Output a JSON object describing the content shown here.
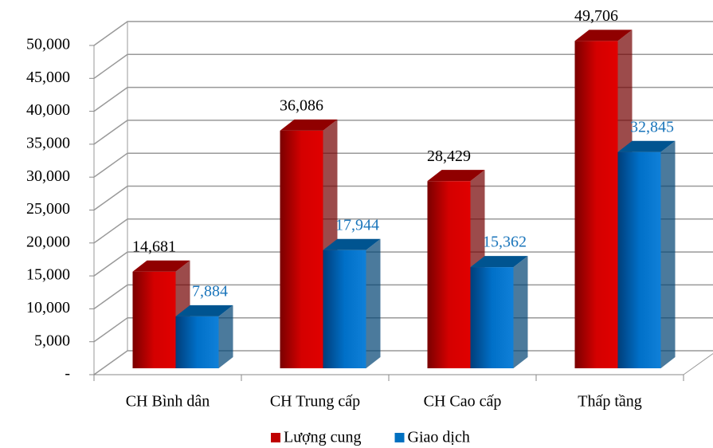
{
  "chart_data": {
    "type": "bar3d",
    "categories": [
      "CH Bình dân",
      "CH Trung cấp",
      "CH Cao cấp",
      "Thấp tầng"
    ],
    "series": [
      {
        "name": "Lượng cung",
        "color": "#c00000",
        "values": [
          14681,
          36086,
          28429,
          49706
        ],
        "value_labels": [
          "14,681",
          "36,086",
          "28,429",
          "49,706"
        ]
      },
      {
        "name": "Giao dịch",
        "color": "#0070c0",
        "values": [
          7884,
          17944,
          15362,
          32845
        ],
        "value_labels": [
          "7,884",
          "17,944",
          "15,362",
          "32,845"
        ]
      }
    ],
    "ylim": [
      0,
      50000
    ],
    "yticks": [
      {
        "value": 0,
        "label": "-"
      },
      {
        "value": 5000,
        "label": "5,000"
      },
      {
        "value": 10000,
        "label": "10,000"
      },
      {
        "value": 15000,
        "label": "15,000"
      },
      {
        "value": 20000,
        "label": "20,000"
      },
      {
        "value": 25000,
        "label": "25,000"
      },
      {
        "value": 30000,
        "label": "30,000"
      },
      {
        "value": 35000,
        "label": "35,000"
      },
      {
        "value": 40000,
        "label": "40,000"
      },
      {
        "value": 45000,
        "label": "45,000"
      },
      {
        "value": 50000,
        "label": "50,000"
      }
    ],
    "grid": true,
    "legend": "bottom"
  }
}
